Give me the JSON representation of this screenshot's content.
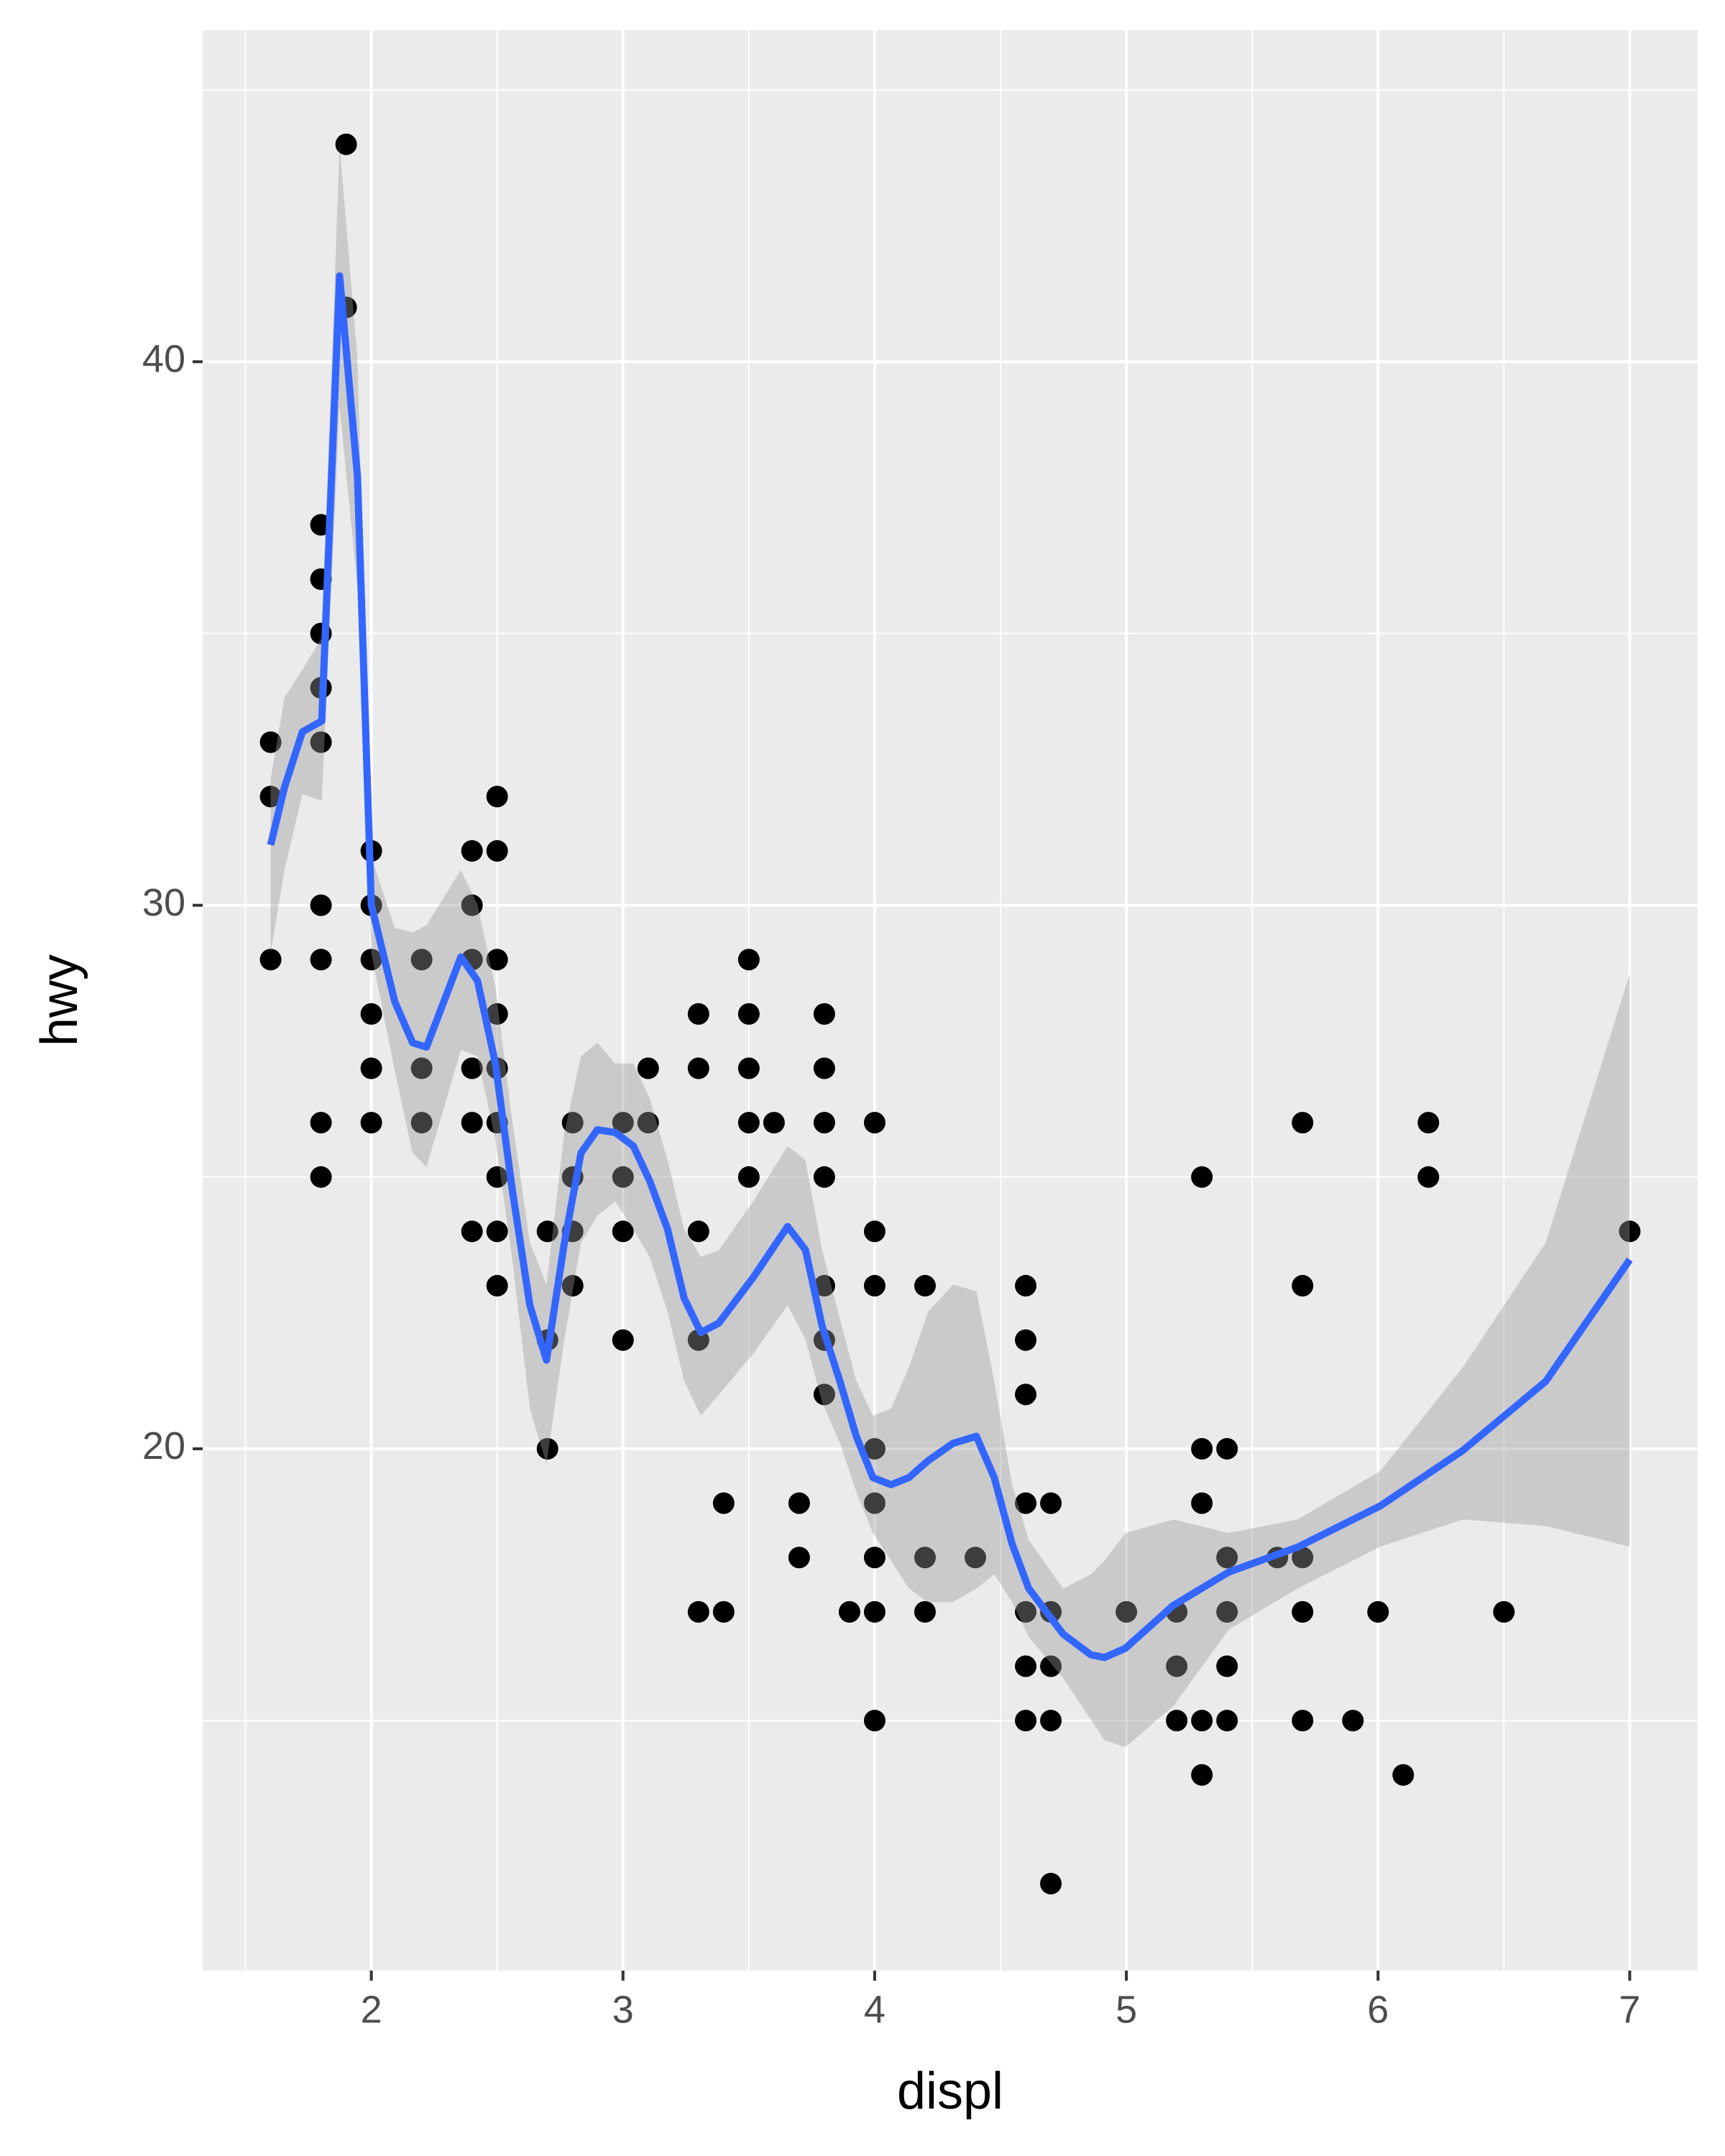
{
  "chart_data": {
    "type": "scatter",
    "x_label": "displ",
    "y_label": "hwy",
    "xlim": [
      1.33,
      7.27
    ],
    "ylim": [
      10.4,
      46.1
    ],
    "xticks": [
      2,
      3,
      4,
      5,
      6,
      7
    ],
    "yticks": [
      20,
      30,
      40
    ],
    "x_minor_grid": [
      1.5,
      2.5,
      3.5,
      4.5,
      5.5,
      6.5
    ],
    "y_minor_grid": [
      15,
      25,
      35,
      45
    ],
    "grid": true,
    "panel_color": "#ebebeb",
    "points": {
      "color": "#000000",
      "x": [
        1.6,
        1.6,
        1.6,
        1.8,
        1.8,
        1.8,
        1.8,
        1.8,
        1.8,
        1.8,
        1.8,
        1.8,
        1.9,
        1.9,
        2,
        2,
        2,
        2,
        2,
        2,
        2.2,
        2.2,
        2.2,
        2.4,
        2.4,
        2.4,
        2.4,
        2.4,
        2.4,
        2.5,
        2.5,
        2.5,
        2.5,
        2.5,
        2.5,
        2.5,
        2.5,
        2.5,
        2.7,
        2.7,
        2.7,
        2.8,
        2.8,
        2.8,
        2.8,
        3,
        3,
        3,
        3,
        3.1,
        3.1,
        3.3,
        3.3,
        3.3,
        3.3,
        3.3,
        3.4,
        3.4,
        3.5,
        3.5,
        3.5,
        3.5,
        3.5,
        3.6,
        3.7,
        3.7,
        3.8,
        3.8,
        3.8,
        3.8,
        3.8,
        3.8,
        3.8,
        3.9,
        4,
        4,
        4,
        4,
        4,
        4,
        4,
        4,
        4.2,
        4.2,
        4.2,
        4.4,
        4.6,
        4.6,
        4.6,
        4.6,
        4.6,
        4.6,
        4.6,
        4.7,
        4.7,
        4.7,
        4.7,
        4.7,
        5,
        5.2,
        5.2,
        5.2,
        5.3,
        5.3,
        5.3,
        5.3,
        5.3,
        5.4,
        5.4,
        5.4,
        5.4,
        5.4,
        5.6,
        5.7,
        5.7,
        5.7,
        5.7,
        5.7,
        5.9,
        6,
        6.1,
        6.2,
        6.2,
        6.5,
        7
      ],
      "values": [
        33,
        32,
        29,
        37,
        36,
        35,
        34,
        33,
        30,
        29,
        26,
        25,
        44,
        41,
        31,
        30,
        29,
        28,
        27,
        26,
        29,
        27,
        26,
        31,
        30,
        29,
        27,
        26,
        24,
        32,
        31,
        29,
        28,
        27,
        26,
        25,
        24,
        23,
        24,
        22,
        20,
        26,
        25,
        24,
        23,
        26,
        25,
        24,
        22,
        27,
        26,
        28,
        27,
        24,
        22,
        17,
        19,
        17,
        29,
        28,
        27,
        26,
        25,
        26,
        19,
        18,
        28,
        27,
        26,
        25,
        23,
        22,
        21,
        17,
        26,
        24,
        23,
        20,
        19,
        18,
        17,
        15,
        23,
        18,
        17,
        18,
        23,
        22,
        21,
        19,
        17,
        16,
        15,
        19,
        17,
        16,
        15,
        12,
        17,
        17,
        16,
        15,
        25,
        20,
        19,
        15,
        14,
        20,
        18,
        17,
        16,
        15,
        18,
        26,
        23,
        18,
        17,
        15,
        15,
        17,
        14,
        26,
        25,
        17,
        24
      ]
    },
    "smooth": {
      "color": "#3366ff",
      "fill": "#999999",
      "x": [
        1.6,
        1.655,
        1.726,
        1.803,
        1.874,
        1.945,
        2.0,
        2.093,
        2.164,
        2.219,
        2.356,
        2.422,
        2.493,
        2.559,
        2.63,
        2.696,
        2.767,
        2.833,
        2.898,
        2.969,
        3.041,
        3.106,
        3.177,
        3.243,
        3.309,
        3.38,
        3.517,
        3.654,
        3.725,
        3.791,
        3.862,
        3.927,
        3.993,
        4.065,
        4.136,
        4.212,
        4.311,
        4.404,
        4.475,
        4.546,
        4.612,
        4.749,
        4.859,
        4.913,
        4.996,
        5.187,
        5.406,
        5.68,
        6.009,
        6.337,
        6.666,
        7.0
      ],
      "values": [
        31.11,
        32.17,
        33.19,
        33.39,
        41.58,
        37.89,
        30.01,
        28.23,
        27.47,
        27.39,
        29.05,
        28.61,
        27.09,
        24.8,
        22.64,
        21.63,
        23.79,
        25.44,
        25.87,
        25.82,
        25.57,
        24.93,
        24.04,
        22.77,
        22.14,
        22.31,
        23.15,
        24.09,
        23.66,
        22.26,
        21.24,
        20.23,
        19.47,
        19.34,
        19.47,
        19.78,
        20.1,
        20.23,
        19.47,
        18.25,
        17.43,
        16.59,
        16.21,
        16.16,
        16.33,
        17.12,
        17.73,
        18.19,
        18.95,
        19.97,
        21.24,
        23.48
      ],
      "upper": [
        32.32,
        33.82,
        34.33,
        34.92,
        43.99,
        40.05,
        30.9,
        29.58,
        29.5,
        29.63,
        30.65,
        30.01,
        28.49,
        26.07,
        23.79,
        23.02,
        25.82,
        27.22,
        27.47,
        27.09,
        27.09,
        26.45,
        25.31,
        24.04,
        23.53,
        23.65,
        24.55,
        25.57,
        25.31,
        23.66,
        22.39,
        21.25,
        20.61,
        20.74,
        21.5,
        22.52,
        23.02,
        22.9,
        21.25,
        19.34,
        18.32,
        17.43,
        17.69,
        17.94,
        18.45,
        18.7,
        18.45,
        18.7,
        19.59,
        21.5,
        23.79,
        28.74
      ],
      "lower": [
        29.12,
        30.65,
        32.05,
        31.92,
        39.16,
        35.86,
        29.12,
        26.96,
        25.44,
        25.18,
        27.34,
        27.22,
        25.69,
        23.53,
        20.74,
        19.72,
        22.01,
        23.79,
        24.29,
        24.55,
        24.04,
        23.53,
        22.52,
        21.25,
        20.61,
        20.99,
        21.75,
        22.64,
        22.01,
        20.86,
        20.1,
        19.21,
        18.45,
        17.94,
        17.43,
        17.18,
        17.18,
        17.43,
        17.69,
        17.18,
        16.54,
        15.78,
        15.02,
        14.64,
        14.51,
        15.27,
        16.67,
        17.43,
        18.2,
        18.7,
        18.58,
        18.2
      ]
    }
  }
}
